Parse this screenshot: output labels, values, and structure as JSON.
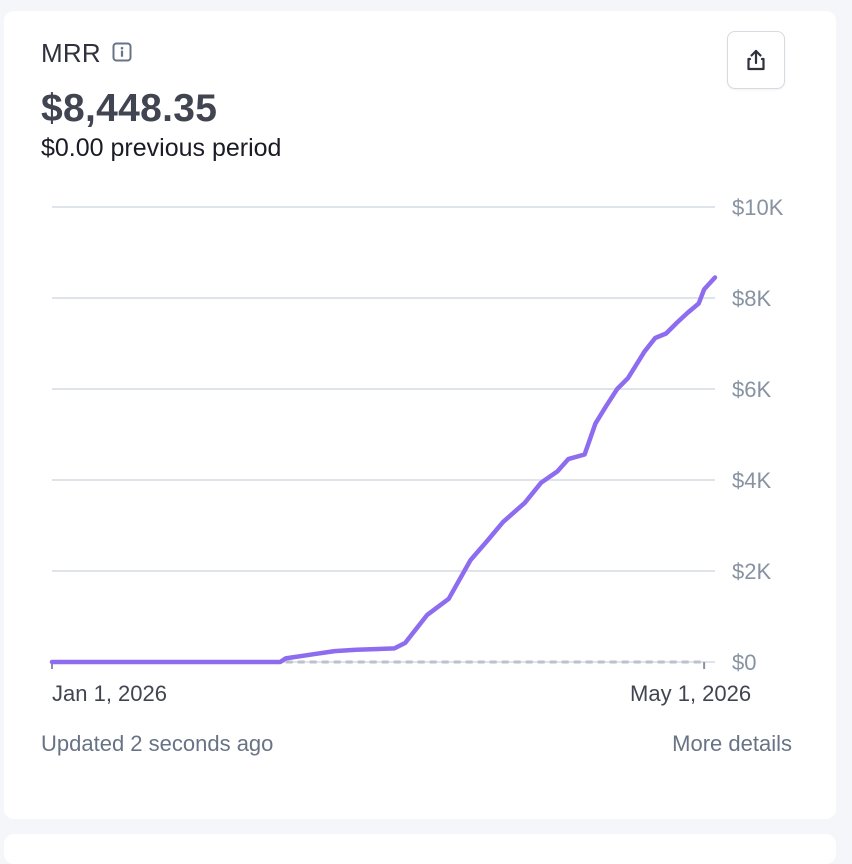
{
  "metric": {
    "name": "MRR",
    "info_icon": "info-icon",
    "value": "$8,448.35",
    "previous": "$0.00 previous period"
  },
  "actions": {
    "share_icon": "share-icon"
  },
  "footer": {
    "updated": "Updated 2 seconds ago",
    "more_details": "More details"
  },
  "colors": {
    "series": "#8e6cef",
    "previous_series": "#bcc2cb",
    "grid": "#dfe3ea"
  },
  "chart_data": {
    "type": "line",
    "x_start": "2026-01-01",
    "x_end": "2026-05-03",
    "xtick_labels": [
      "Jan 1, 2026",
      "May 1, 2026"
    ],
    "ylim": [
      0,
      10000
    ],
    "ytick_labels": [
      "$0",
      "$2K",
      "$4K",
      "$6K",
      "$8K",
      "$10K"
    ],
    "ytick_values": [
      0,
      2000,
      4000,
      6000,
      8000,
      10000
    ],
    "grid": true,
    "series": [
      {
        "style": "solid",
        "x": [
          "2026-01-01",
          "2026-02-12",
          "2026-02-13",
          "2026-02-18",
          "2026-02-22",
          "2026-02-26",
          "2026-03-05",
          "2026-03-07",
          "2026-03-11",
          "2026-03-15",
          "2026-03-19",
          "2026-03-22",
          "2026-03-25",
          "2026-03-29",
          "2026-04-01",
          "2026-04-04",
          "2026-04-06",
          "2026-04-09",
          "2026-04-11",
          "2026-04-13",
          "2026-04-15",
          "2026-04-17",
          "2026-04-20",
          "2026-04-22",
          "2026-04-24",
          "2026-04-26",
          "2026-04-28",
          "2026-04-30",
          "2026-05-01",
          "2026-05-03"
        ],
        "y": [
          0,
          0,
          80,
          170,
          240,
          270,
          300,
          420,
          1030,
          1390,
          2240,
          2650,
          3080,
          3500,
          3940,
          4190,
          4460,
          4560,
          5240,
          5630,
          6000,
          6240,
          6820,
          7120,
          7220,
          7460,
          7680,
          7880,
          8190,
          8450
        ]
      },
      {
        "style": "dashed",
        "x": [
          "2026-02-13",
          "2026-05-01"
        ],
        "y": [
          0,
          0
        ]
      }
    ]
  }
}
